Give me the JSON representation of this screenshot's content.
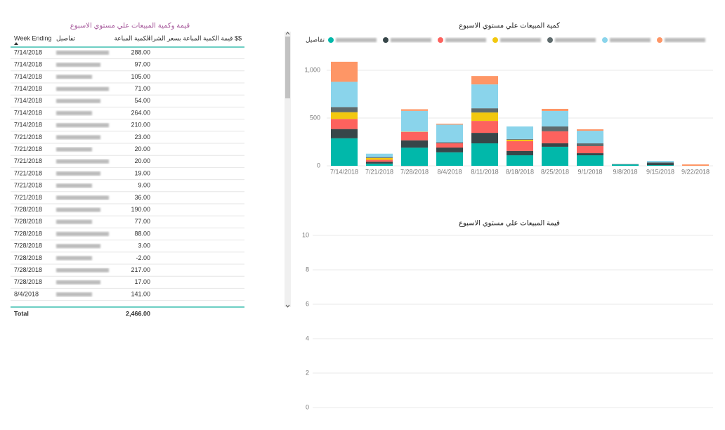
{
  "table": {
    "title": "قيمة وكمية المبيعات علي مستوي الاسبوع",
    "columns": [
      "Week Ending",
      "تفاصيل",
      "الكمية المباعة",
      "قيمة الكمية المباعة بسعر الشراء $$"
    ],
    "rows": [
      {
        "week": "7/14/2018",
        "quantity": "288.00"
      },
      {
        "week": "7/14/2018",
        "quantity": "97.00"
      },
      {
        "week": "7/14/2018",
        "quantity": "105.00"
      },
      {
        "week": "7/14/2018",
        "quantity": "71.00"
      },
      {
        "week": "7/14/2018",
        "quantity": "54.00"
      },
      {
        "week": "7/14/2018",
        "quantity": "264.00"
      },
      {
        "week": "7/14/2018",
        "quantity": "210.00"
      },
      {
        "week": "7/21/2018",
        "quantity": "23.00"
      },
      {
        "week": "7/21/2018",
        "quantity": "20.00"
      },
      {
        "week": "7/21/2018",
        "quantity": "20.00"
      },
      {
        "week": "7/21/2018",
        "quantity": "19.00"
      },
      {
        "week": "7/21/2018",
        "quantity": "9.00"
      },
      {
        "week": "7/21/2018",
        "quantity": "36.00"
      },
      {
        "week": "7/28/2018",
        "quantity": "190.00"
      },
      {
        "week": "7/28/2018",
        "quantity": "77.00"
      },
      {
        "week": "7/28/2018",
        "quantity": "88.00"
      },
      {
        "week": "7/28/2018",
        "quantity": "3.00"
      },
      {
        "week": "7/28/2018",
        "quantity": "-2.00"
      },
      {
        "week": "7/28/2018",
        "quantity": "217.00"
      },
      {
        "week": "7/28/2018",
        "quantity": "17.00"
      },
      {
        "week": "8/4/2018",
        "quantity": "141.00"
      }
    ],
    "total": {
      "label": "Total",
      "quantity": "2,466.00"
    }
  },
  "chart_data": [
    {
      "type": "stacked_bar",
      "title": "كمية المبيعات علي مستوي الاسبوع",
      "legend_title": "تفاصيل",
      "categories": [
        "7/14/2018",
        "7/21/2018",
        "7/28/2018",
        "8/4/2018",
        "8/11/2018",
        "8/18/2018",
        "8/25/2018",
        "9/1/2018",
        "9/8/2018",
        "9/15/2018",
        "9/22/2018"
      ],
      "series": [
        {
          "color": "#01B8AA",
          "values": [
            288,
            23,
            190,
            141,
            235,
            110,
            199,
            110,
            15,
            7,
            0
          ]
        },
        {
          "color": "#374649",
          "values": [
            97,
            20,
            77,
            50,
            110,
            45,
            37,
            22,
            0,
            22,
            0
          ]
        },
        {
          "color": "#FD625E",
          "values": [
            105,
            20,
            88,
            45,
            125,
            103,
            125,
            74,
            3,
            0,
            0
          ]
        },
        {
          "color": "#F2C80F",
          "values": [
            71,
            19,
            3,
            0,
            88,
            15,
            0,
            0,
            0,
            0,
            0
          ]
        },
        {
          "color": "#5F6B6D",
          "values": [
            54,
            9,
            -2,
            10,
            44,
            7,
            51,
            29,
            0,
            7,
            0
          ]
        },
        {
          "color": "#8AD4EB",
          "values": [
            264,
            36,
            217,
            185,
            250,
            132,
            162,
            132,
            4,
            15,
            0
          ]
        },
        {
          "color": "#FE9666",
          "values": [
            210,
            0,
            17,
            10,
            88,
            0,
            22,
            15,
            0,
            0,
            15
          ]
        }
      ],
      "ylim": [
        0,
        1100
      ],
      "yticks": [
        0,
        500,
        {
          "value": 1000,
          "label": "1,000"
        }
      ],
      "grid": true
    },
    {
      "type": "stacked_bar",
      "title": "قيمة  المبيعات علي مستوي الاسبوع",
      "ylim": [
        0,
        10
      ],
      "yticks": [
        0,
        2,
        4,
        6,
        8,
        10
      ],
      "grid": true
    }
  ]
}
